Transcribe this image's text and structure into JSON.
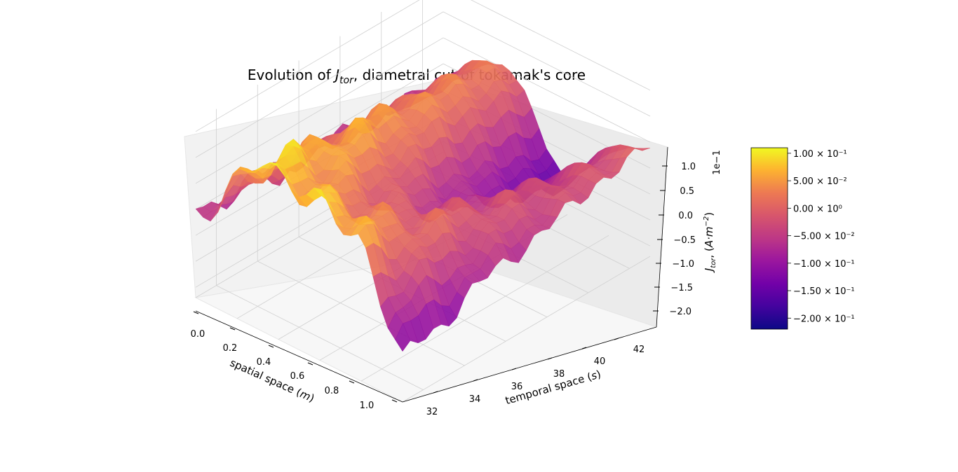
{
  "chart_data": {
    "type": "surface3d",
    "title_prefix": "Evolution of ",
    "title_var": "J",
    "title_sub": "tor",
    "title_suffix": ", diametral cut of tokamak's core",
    "xlabel": "spatial space (m)",
    "xlabel_prefix": "spatial space (",
    "xlabel_unit": "m",
    "ylabel": "temporal space (s)",
    "ylabel_prefix": "temporal space (",
    "ylabel_unit": "s",
    "zlabel": "J_tor, (A·m^-2)",
    "zlabel_var": "J",
    "zlabel_sub": "tor",
    "zlabel_mid": ", (",
    "zlabel_unit": "A·m",
    "zlabel_exp": "−2",
    "zlabel_close": ")",
    "z_offset_label": "1e−1",
    "x_ticks": [
      "0.0",
      "0.2",
      "0.4",
      "0.6",
      "0.8",
      "1.0"
    ],
    "y_ticks": [
      "32",
      "34",
      "36",
      "38",
      "40",
      "42"
    ],
    "z_ticks": [
      "1.0",
      "0.5",
      "0.0",
      "−0.5",
      "−1.0",
      "−1.5",
      "−2.0"
    ],
    "xlim": [
      0,
      1.0
    ],
    "ylim": [
      31,
      43
    ],
    "zlim": [
      -2.2,
      1.2
    ],
    "colormap": "plasma",
    "colorbar": {
      "range": [
        -0.22,
        0.11
      ],
      "ticks": [
        {
          "value": 0.1,
          "label": "1.00 × 10⁻¹"
        },
        {
          "value": 0.05,
          "label": "5.00 × 10⁻²"
        },
        {
          "value": 0.0,
          "label": "0.00 × 10⁰"
        },
        {
          "value": -0.05,
          "label": "−5.00 × 10⁻²"
        },
        {
          "value": -0.1,
          "label": "−1.00 × 10⁻¹"
        },
        {
          "value": -0.15,
          "label": "−1.50 × 10⁻¹"
        },
        {
          "value": -0.2,
          "label": "−2.00 × 10⁻¹"
        }
      ]
    },
    "surface_profile": {
      "description_free": true,
      "r": [
        0.0,
        0.1,
        0.2,
        0.3,
        0.4,
        0.5,
        0.6,
        0.7,
        0.8,
        0.9,
        1.0
      ],
      "t_late_J": [
        -0.08,
        -0.05,
        0.0,
        0.02,
        -0.02,
        -0.12,
        -0.17,
        -0.12,
        -0.06,
        -0.02,
        0.0
      ],
      "t_early_J": [
        -0.05,
        -0.02,
        0.05,
        0.1,
        0.08,
        0.09,
        0.1,
        0.08,
        0.05,
        -0.05,
        -0.15
      ]
    }
  }
}
